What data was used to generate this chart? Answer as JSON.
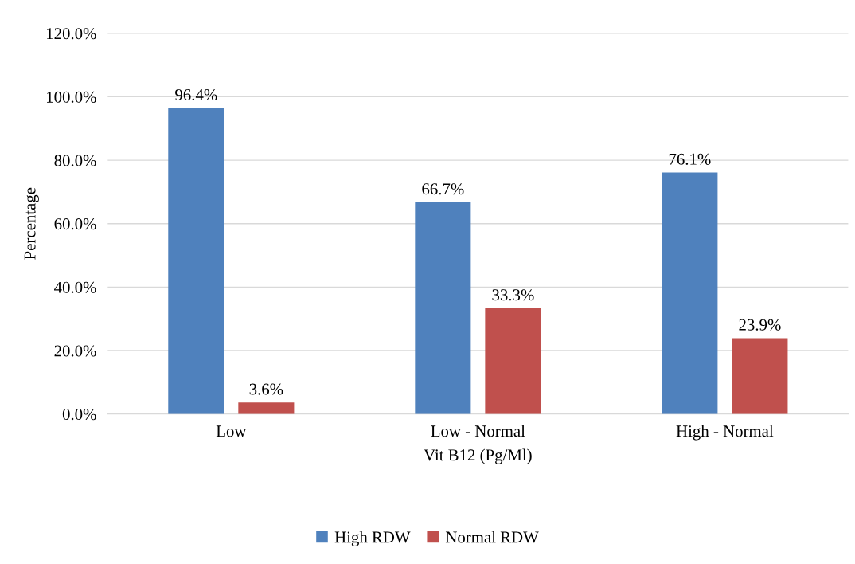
{
  "chart_data": {
    "type": "bar",
    "xlabel": "Vit B12 (Pg/Ml)",
    "ylabel": "Percentage",
    "categories": [
      "Low",
      "Low - Normal",
      "High - Normal"
    ],
    "series": [
      {
        "name": "High RDW",
        "color": "#4f81bd",
        "values": [
          96.4,
          66.7,
          76.1
        ],
        "value_labels": [
          "96.4%",
          "66.7%",
          "76.1%"
        ]
      },
      {
        "name": "Normal RDW",
        "color": "#c0504d",
        "values": [
          3.6,
          33.3,
          23.9
        ],
        "value_labels": [
          "3.6%",
          "33.3%",
          "23.9%"
        ]
      }
    ],
    "ylim": [
      0,
      120
    ],
    "yticks": [
      {
        "value": 0,
        "label": "0.0%"
      },
      {
        "value": 20,
        "label": "20.0%"
      },
      {
        "value": 40,
        "label": "40.0%"
      },
      {
        "value": 60,
        "label": "60.0%"
      },
      {
        "value": 80,
        "label": "80.0%"
      },
      {
        "value": 100,
        "label": "100.0%"
      },
      {
        "value": 120,
        "label": "120.0%"
      }
    ],
    "grid": "y",
    "legend": "bottom"
  }
}
